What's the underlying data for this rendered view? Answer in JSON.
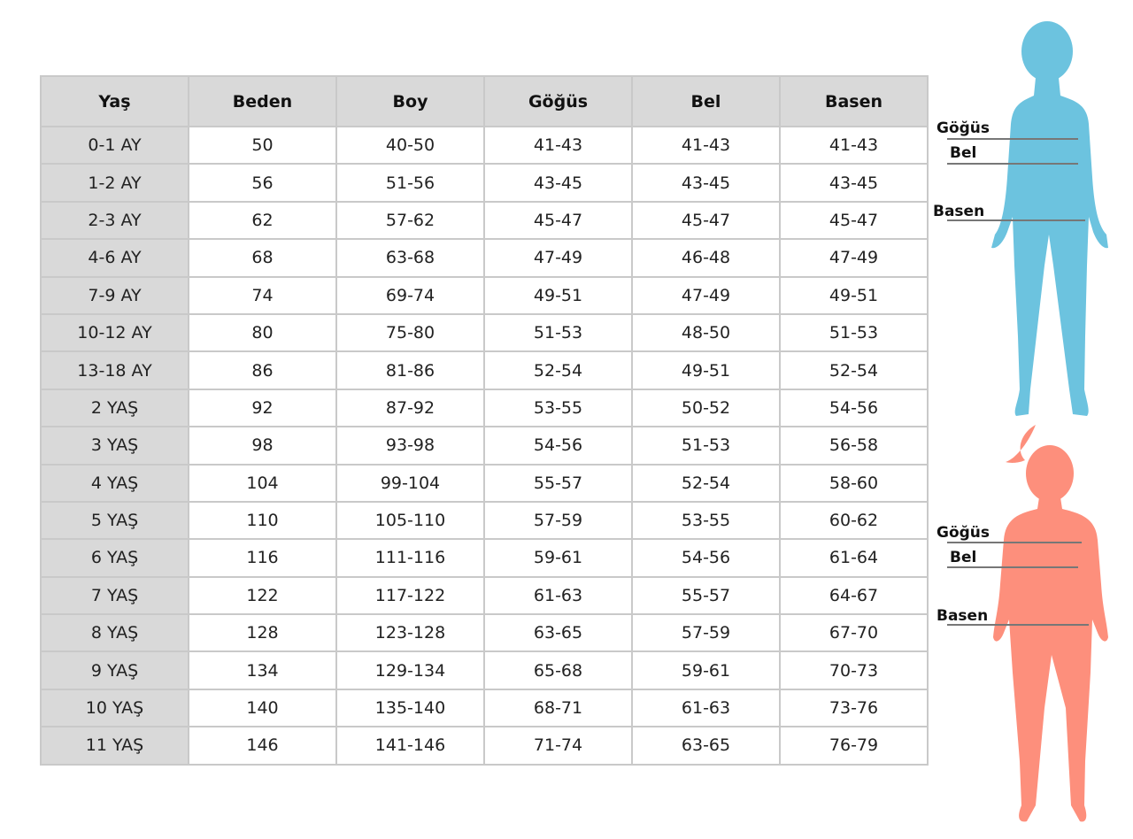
{
  "table": {
    "headers": [
      "Yaş",
      "Beden",
      "Boy",
      "Göğüs",
      "Bel",
      "Basen"
    ],
    "rows": [
      [
        "0-1 AY",
        "50",
        "40-50",
        "41-43",
        "41-43",
        "41-43"
      ],
      [
        "1-2 AY",
        "56",
        "51-56",
        "43-45",
        "43-45",
        "43-45"
      ],
      [
        "2-3 AY",
        "62",
        "57-62",
        "45-47",
        "45-47",
        "45-47"
      ],
      [
        "4-6 AY",
        "68",
        "63-68",
        "47-49",
        "46-48",
        "47-49"
      ],
      [
        "7-9 AY",
        "74",
        "69-74",
        "49-51",
        "47-49",
        "49-51"
      ],
      [
        "10-12 AY",
        "80",
        "75-80",
        "51-53",
        "48-50",
        "51-53"
      ],
      [
        "13-18 AY",
        "86",
        "81-86",
        "52-54",
        "49-51",
        "52-54"
      ],
      [
        "2 YAŞ",
        "92",
        "87-92",
        "53-55",
        "50-52",
        "54-56"
      ],
      [
        "3 YAŞ",
        "98",
        "93-98",
        "54-56",
        "51-53",
        "56-58"
      ],
      [
        "4 YAŞ",
        "104",
        "99-104",
        "55-57",
        "52-54",
        "58-60"
      ],
      [
        "5 YAŞ",
        "110",
        "105-110",
        "57-59",
        "53-55",
        "60-62"
      ],
      [
        "6 YAŞ",
        "116",
        "111-116",
        "59-61",
        "54-56",
        "61-64"
      ],
      [
        "7 YAŞ",
        "122",
        "117-122",
        "61-63",
        "55-57",
        "64-67"
      ],
      [
        "8 YAŞ",
        "128",
        "123-128",
        "63-65",
        "57-59",
        "67-70"
      ],
      [
        "9 YAŞ",
        "134",
        "129-134",
        "65-68",
        "59-61",
        "70-73"
      ],
      [
        "10 YAŞ",
        "140",
        "135-140",
        "68-71",
        "61-63",
        "73-76"
      ],
      [
        "11 YAŞ",
        "146",
        "141-146",
        "71-74",
        "63-65",
        "76-79"
      ]
    ]
  },
  "figures": {
    "boy": {
      "color": "#6cc3df",
      "labels": {
        "chest": "Göğüs",
        "waist": "Bel",
        "hip": "Basen"
      }
    },
    "girl": {
      "color": "#fd8f7c",
      "labels": {
        "chest": "Göğüs",
        "waist": "Bel",
        "hip": "Basen"
      }
    }
  }
}
